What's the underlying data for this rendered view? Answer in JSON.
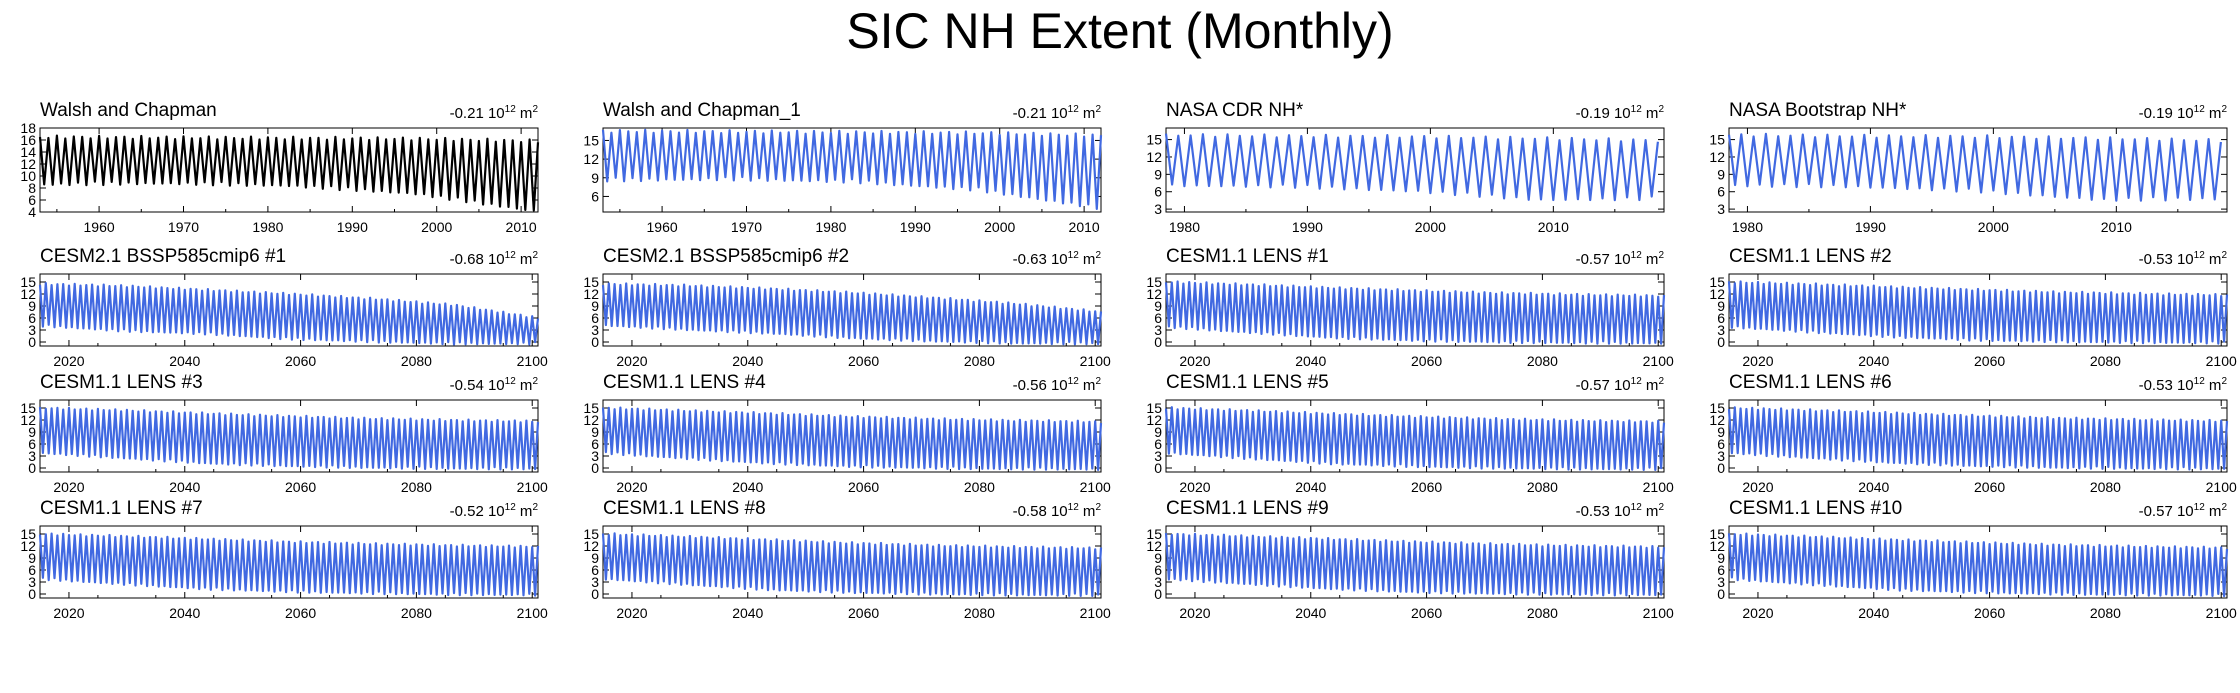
{
  "title": "SIC NH Extent (Monthly)",
  "colors": {
    "observed": "#000000",
    "model": "#4169e1"
  },
  "chart_data": [
    {
      "type": "line",
      "title": "Walsh and Chapman",
      "trend": "-0.21 10",
      "trend_exp": "12",
      "trend_unit": " m",
      "trend_unit_exp": "2",
      "x_range": [
        1953,
        2012
      ],
      "ylim": [
        4,
        18
      ],
      "yticks": [
        "4",
        "6",
        "8",
        "10",
        "12",
        "14",
        "16",
        "18"
      ],
      "xticks": [
        "1960",
        "1970",
        "1980",
        "1990",
        "2000",
        "2010"
      ],
      "xtick_values": [
        1960,
        1970,
        1980,
        1990,
        2000,
        2010
      ],
      "color": "observed",
      "series": [
        {
          "name": "Walsh and Chapman",
          "annual_max": [
            16.5,
            16.4,
            16.3,
            16.2,
            15.8
          ],
          "annual_min": [
            9.0,
            9.2,
            8.8,
            7.5,
            4.5
          ]
        }
      ]
    },
    {
      "type": "line",
      "title": "Walsh and Chapman_1",
      "trend": "-0.21 10",
      "trend_exp": "12",
      "trend_unit": " m",
      "trend_unit_exp": "2",
      "x_range": [
        1953,
        2012
      ],
      "ylim": [
        3.5,
        17
      ],
      "yticks": [
        "6",
        "9",
        "12",
        "15"
      ],
      "xticks": [
        "1960",
        "1970",
        "1980",
        "1990",
        "2000",
        "2010"
      ],
      "xtick_values": [
        1960,
        1970,
        1980,
        1990,
        2000,
        2010
      ],
      "color": "model",
      "series": [
        {
          "name": "Walsh and Chapman_1",
          "annual_max": [
            16.5,
            16.4,
            16.3,
            16.2,
            15.8
          ],
          "annual_min": [
            9.0,
            9.2,
            8.8,
            7.5,
            4.5
          ]
        }
      ]
    },
    {
      "type": "line",
      "title": "NASA CDR NH*",
      "trend": "-0.19 10",
      "trend_exp": "12",
      "trend_unit": " m",
      "trend_unit_exp": "2",
      "x_range": [
        1978.5,
        2019
      ],
      "ylim": [
        2.5,
        17
      ],
      "yticks": [
        "3",
        "6",
        "9",
        "12",
        "15"
      ],
      "xticks": [
        "1980",
        "1990",
        "2000",
        "2010"
      ],
      "xtick_values": [
        1980,
        1990,
        2000,
        2010
      ],
      "color": "model",
      "series": [
        {
          "name": "NASA CDR NH*",
          "annual_max": [
            15.8,
            15.6,
            15.5,
            15.2,
            14.8
          ],
          "annual_min": [
            7.5,
            7.3,
            6.5,
            5.0,
            5.2
          ]
        }
      ]
    },
    {
      "type": "line",
      "title": "NASA Bootstrap NH*",
      "trend": "-0.19 10",
      "trend_exp": "12",
      "trend_unit": " m",
      "trend_unit_exp": "2",
      "x_range": [
        1978.5,
        2019
      ],
      "ylim": [
        2.5,
        17
      ],
      "yticks": [
        "3",
        "6",
        "9",
        "12",
        "15"
      ],
      "xticks": [
        "1980",
        "1990",
        "2000",
        "2010"
      ],
      "xtick_values": [
        1980,
        1990,
        2000,
        2010
      ],
      "color": "model",
      "series": [
        {
          "name": "NASA Bootstrap NH*",
          "annual_max": [
            15.8,
            15.6,
            15.5,
            15.2,
            14.8
          ],
          "annual_min": [
            7.5,
            7.3,
            6.5,
            5.0,
            5.2
          ]
        }
      ]
    },
    {
      "type": "line",
      "title": "CESM2.1 BSSP585cmip6 #1",
      "trend": "-0.68 10",
      "trend_exp": "12",
      "trend_unit": " m",
      "trend_unit_exp": "2",
      "x_range": [
        2015,
        2101
      ],
      "ylim": [
        -1,
        17
      ],
      "yticks": [
        "0",
        "3",
        "6",
        "9",
        "12",
        "15"
      ],
      "xticks": [
        "2020",
        "2040",
        "2060",
        "2080",
        "2100"
      ],
      "xtick_values": [
        2020,
        2040,
        2060,
        2080,
        2100
      ],
      "color": "model",
      "series": [
        {
          "name": "CESM2.1 BSSP585cmip6 #1",
          "annual_max": [
            14.5,
            14.0,
            13.0,
            12.0,
            10.8,
            9.2,
            6.0
          ],
          "annual_min": [
            4.5,
            3.2,
            2.5,
            1.2,
            0.5,
            0.0,
            0.0
          ]
        }
      ]
    },
    {
      "type": "line",
      "title": "CESM2.1 BSSP585cmip6 #2",
      "trend": "-0.63 10",
      "trend_exp": "12",
      "trend_unit": " m",
      "trend_unit_exp": "2",
      "x_range": [
        2015,
        2101
      ],
      "ylim": [
        -1,
        17
      ],
      "yticks": [
        "0",
        "3",
        "6",
        "9",
        "12",
        "15"
      ],
      "xticks": [
        "2020",
        "2040",
        "2060",
        "2080",
        "2100"
      ],
      "xtick_values": [
        2020,
        2040,
        2060,
        2080,
        2100
      ],
      "color": "model",
      "series": [
        {
          "name": "CESM2.1 BSSP585cmip6 #2",
          "annual_max": [
            14.5,
            14.1,
            13.3,
            12.3,
            11.0,
            9.5,
            7.5
          ],
          "annual_min": [
            4.6,
            3.5,
            2.6,
            1.4,
            0.6,
            0.1,
            0.0
          ]
        }
      ]
    },
    {
      "type": "line",
      "title": "CESM1.1 LENS #1",
      "trend": "-0.57 10",
      "trend_exp": "12",
      "trend_unit": " m",
      "trend_unit_exp": "2",
      "x_range": [
        2015,
        2101
      ],
      "ylim": [
        -1,
        17
      ],
      "yticks": [
        "0",
        "3",
        "6",
        "9",
        "12",
        "15"
      ],
      "xticks": [
        "2020",
        "2040",
        "2060",
        "2080",
        "2100"
      ],
      "xtick_values": [
        2020,
        2040,
        2060,
        2080,
        2100
      ],
      "color": "model",
      "series": [
        {
          "name": "CESM1.1 LENS #1",
          "annual_max": [
            15.0,
            14.3,
            13.5,
            12.8,
            12.2,
            11.8,
            11.5
          ],
          "annual_min": [
            4.2,
            2.8,
            1.5,
            0.8,
            0.4,
            0.2,
            0.1
          ]
        }
      ]
    },
    {
      "type": "line",
      "title": "CESM1.1 LENS #2",
      "trend": "-0.53 10",
      "trend_exp": "12",
      "trend_unit": " m",
      "trend_unit_exp": "2",
      "x_range": [
        2015,
        2101
      ],
      "ylim": [
        -1,
        17
      ],
      "yticks": [
        "0",
        "3",
        "6",
        "9",
        "12",
        "15"
      ],
      "xticks": [
        "2020",
        "2040",
        "2060",
        "2080",
        "2100"
      ],
      "xtick_values": [
        2020,
        2040,
        2060,
        2080,
        2100
      ],
      "color": "model",
      "series": [
        {
          "name": "CESM1.1 LENS #2",
          "annual_max": [
            15.0,
            14.4,
            13.7,
            13.0,
            12.4,
            12.0,
            11.7
          ],
          "annual_min": [
            4.2,
            2.9,
            1.7,
            0.9,
            0.5,
            0.3,
            0.2
          ]
        }
      ]
    },
    {
      "type": "line",
      "title": "CESM1.1 LENS #3",
      "trend": "-0.54 10",
      "trend_exp": "12",
      "trend_unit": " m",
      "trend_unit_exp": "2",
      "x_range": [
        2015,
        2101
      ],
      "ylim": [
        -1,
        17
      ],
      "yticks": [
        "0",
        "3",
        "6",
        "9",
        "12",
        "15"
      ],
      "xticks": [
        "2020",
        "2040",
        "2060",
        "2080",
        "2100"
      ],
      "xtick_values": [
        2020,
        2040,
        2060,
        2080,
        2100
      ],
      "color": "model",
      "series": [
        {
          "name": "CESM1.1 LENS #3",
          "annual_max": [
            15.0,
            14.4,
            13.6,
            12.9,
            12.3,
            11.9,
            11.6
          ],
          "annual_min": [
            4.2,
            2.9,
            1.6,
            0.9,
            0.5,
            0.3,
            0.2
          ]
        }
      ]
    },
    {
      "type": "line",
      "title": "CESM1.1 LENS #4",
      "trend": "-0.56 10",
      "trend_exp": "12",
      "trend_unit": " m",
      "trend_unit_exp": "2",
      "x_range": [
        2015,
        2101
      ],
      "ylim": [
        -1,
        17
      ],
      "yticks": [
        "0",
        "3",
        "6",
        "9",
        "12",
        "15"
      ],
      "xticks": [
        "2020",
        "2040",
        "2060",
        "2080",
        "2100"
      ],
      "xtick_values": [
        2020,
        2040,
        2060,
        2080,
        2100
      ],
      "color": "model",
      "series": [
        {
          "name": "CESM1.1 LENS #4",
          "annual_max": [
            15.0,
            14.3,
            13.6,
            12.8,
            12.2,
            11.8,
            11.5
          ],
          "annual_min": [
            4.2,
            2.8,
            1.6,
            0.8,
            0.4,
            0.2,
            0.1
          ]
        }
      ]
    },
    {
      "type": "line",
      "title": "CESM1.1 LENS #5",
      "trend": "-0.57 10",
      "trend_exp": "12",
      "trend_unit": " m",
      "trend_unit_exp": "2",
      "x_range": [
        2015,
        2101
      ],
      "ylim": [
        -1,
        17
      ],
      "yticks": [
        "0",
        "3",
        "6",
        "9",
        "12",
        "15"
      ],
      "xticks": [
        "2020",
        "2040",
        "2060",
        "2080",
        "2100"
      ],
      "xtick_values": [
        2020,
        2040,
        2060,
        2080,
        2100
      ],
      "color": "model",
      "series": [
        {
          "name": "CESM1.1 LENS #5",
          "annual_max": [
            15.0,
            14.3,
            13.5,
            12.8,
            12.2,
            11.8,
            11.5
          ],
          "annual_min": [
            4.2,
            2.8,
            1.5,
            0.8,
            0.4,
            0.2,
            0.1
          ]
        }
      ]
    },
    {
      "type": "line",
      "title": "CESM1.1 LENS #6",
      "trend": "-0.53 10",
      "trend_exp": "12",
      "trend_unit": " m",
      "trend_unit_exp": "2",
      "x_range": [
        2015,
        2101
      ],
      "ylim": [
        -1,
        17
      ],
      "yticks": [
        "0",
        "3",
        "6",
        "9",
        "12",
        "15"
      ],
      "xticks": [
        "2020",
        "2040",
        "2060",
        "2080",
        "2100"
      ],
      "xtick_values": [
        2020,
        2040,
        2060,
        2080,
        2100
      ],
      "color": "model",
      "series": [
        {
          "name": "CESM1.1 LENS #6",
          "annual_max": [
            15.0,
            14.4,
            13.7,
            13.0,
            12.4,
            12.0,
            11.7
          ],
          "annual_min": [
            4.2,
            2.9,
            1.7,
            0.9,
            0.5,
            0.3,
            0.2
          ]
        }
      ]
    },
    {
      "type": "line",
      "title": "CESM1.1 LENS #7",
      "trend": "-0.52 10",
      "trend_exp": "12",
      "trend_unit": " m",
      "trend_unit_exp": "2",
      "x_range": [
        2015,
        2101
      ],
      "ylim": [
        -1,
        17
      ],
      "yticks": [
        "0",
        "3",
        "6",
        "9",
        "12",
        "15"
      ],
      "xticks": [
        "2020",
        "2040",
        "2060",
        "2080",
        "2100"
      ],
      "xtick_values": [
        2020,
        2040,
        2060,
        2080,
        2100
      ],
      "color": "model",
      "series": [
        {
          "name": "CESM1.1 LENS #7",
          "annual_max": [
            15.0,
            14.4,
            13.7,
            13.0,
            12.5,
            12.1,
            11.8
          ],
          "annual_min": [
            4.2,
            2.9,
            1.7,
            1.0,
            0.6,
            0.3,
            0.2
          ]
        }
      ]
    },
    {
      "type": "line",
      "title": "CESM1.1 LENS #8",
      "trend": "-0.58 10",
      "trend_exp": "12",
      "trend_unit": " m",
      "trend_unit_exp": "2",
      "x_range": [
        2015,
        2101
      ],
      "ylim": [
        -1,
        17
      ],
      "yticks": [
        "0",
        "3",
        "6",
        "9",
        "12",
        "15"
      ],
      "xticks": [
        "2020",
        "2040",
        "2060",
        "2080",
        "2100"
      ],
      "xtick_values": [
        2020,
        2040,
        2060,
        2080,
        2100
      ],
      "color": "model",
      "series": [
        {
          "name": "CESM1.1 LENS #8",
          "annual_max": [
            15.0,
            14.3,
            13.5,
            12.7,
            12.1,
            11.7,
            11.4
          ],
          "annual_min": [
            4.2,
            2.8,
            1.5,
            0.8,
            0.4,
            0.2,
            0.1
          ]
        }
      ]
    },
    {
      "type": "line",
      "title": "CESM1.1 LENS #9",
      "trend": "-0.53 10",
      "trend_exp": "12",
      "trend_unit": " m",
      "trend_unit_exp": "2",
      "x_range": [
        2015,
        2101
      ],
      "ylim": [
        -1,
        17
      ],
      "yticks": [
        "0",
        "3",
        "6",
        "9",
        "12",
        "15"
      ],
      "xticks": [
        "2020",
        "2040",
        "2060",
        "2080",
        "2100"
      ],
      "xtick_values": [
        2020,
        2040,
        2060,
        2080,
        2100
      ],
      "color": "model",
      "series": [
        {
          "name": "CESM1.1 LENS #9",
          "annual_max": [
            15.0,
            14.4,
            13.7,
            13.0,
            12.4,
            12.0,
            11.7
          ],
          "annual_min": [
            4.2,
            2.9,
            1.7,
            0.9,
            0.5,
            0.3,
            0.2
          ]
        }
      ]
    },
    {
      "type": "line",
      "title": "CESM1.1 LENS #10",
      "trend": "-0.57 10",
      "trend_exp": "12",
      "trend_unit": " m",
      "trend_unit_exp": "2",
      "x_range": [
        2015,
        2101
      ],
      "ylim": [
        -1,
        17
      ],
      "yticks": [
        "0",
        "3",
        "6",
        "9",
        "12",
        "15"
      ],
      "xticks": [
        "2020",
        "2040",
        "2060",
        "2080",
        "2100"
      ],
      "xtick_values": [
        2020,
        2040,
        2060,
        2080,
        2100
      ],
      "color": "model",
      "series": [
        {
          "name": "CESM1.1 LENS #10",
          "annual_max": [
            15.0,
            14.3,
            13.5,
            12.8,
            12.2,
            11.8,
            11.5
          ],
          "annual_min": [
            4.2,
            2.8,
            1.5,
            0.8,
            0.4,
            0.2,
            0.1
          ]
        }
      ]
    }
  ]
}
